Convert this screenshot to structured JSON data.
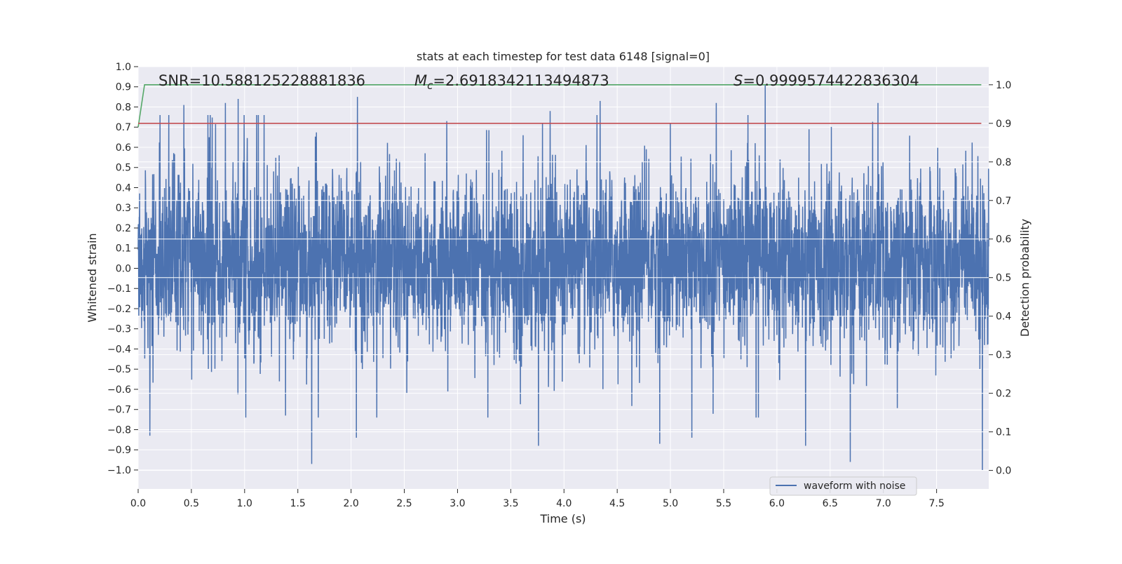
{
  "chart_data": {
    "type": "line",
    "title": "stats at each timestep for test data 6148 [signal=0]",
    "xlabel": "Time (s)",
    "ylabel": "Whitened strain",
    "y2label": "Detection probability",
    "xlim": [
      0,
      7.99
    ],
    "ylim": [
      -1.094,
      1.0
    ],
    "y2lim": [
      -0.048,
      1.047
    ],
    "xticks": [
      0.0,
      0.5,
      1.0,
      1.5,
      2.0,
      2.5,
      3.0,
      3.5,
      4.0,
      4.5,
      5.0,
      5.5,
      6.0,
      6.5,
      7.0,
      7.5
    ],
    "xtick_labels": [
      "0.0",
      "0.5",
      "1.0",
      "1.5",
      "2.0",
      "2.5",
      "3.0",
      "3.5",
      "4.0",
      "4.5",
      "5.0",
      "5.5",
      "6.0",
      "6.5",
      "7.0",
      "7.5"
    ],
    "yticks": [
      1.0,
      0.9,
      0.8,
      0.7,
      0.6,
      0.5,
      0.4,
      0.3,
      0.2,
      0.1,
      0.0,
      -0.1,
      -0.2,
      -0.3,
      -0.4,
      -0.5,
      -0.6,
      -0.7,
      -0.8,
      -0.9,
      -1.0
    ],
    "ytick_labels": [
      "1.0",
      "0.9",
      "0.8",
      "0.7",
      "0.6",
      "0.5",
      "0.4",
      "0.3",
      "0.2",
      "0.1",
      "0.0",
      "−0.1",
      "−0.2",
      "−0.3",
      "−0.4",
      "−0.5",
      "−0.6",
      "−0.7",
      "−0.8",
      "−0.9",
      "−1.0"
    ],
    "y2ticks": [
      1.0,
      0.9,
      0.8,
      0.7,
      0.6,
      0.5,
      0.4,
      0.3,
      0.2,
      0.1,
      0.0
    ],
    "y2tick_labels": [
      "1.0",
      "0.9",
      "0.8",
      "0.7",
      "0.6",
      "0.5",
      "0.4",
      "0.3",
      "0.2",
      "0.1",
      "0.0"
    ],
    "annotations": {
      "snr": "SNR=10.588125228881836",
      "mc_symbol": "M",
      "mc_sub": "c",
      "mc_value": "=2.6918342113494873",
      "s_symbol": "S",
      "s_value": "=0.9999574422836304"
    },
    "legend": {
      "placement": "lower-right",
      "entries": [
        "waveform with noise"
      ]
    },
    "grid": true,
    "series": [
      {
        "name": "waveform with noise",
        "axis": "left",
        "color": "#4c72b0",
        "kind": "noise",
        "n_samples": 4000,
        "std": 0.2,
        "peaks": [
          {
            "x": 0.43,
            "y": 0.81
          },
          {
            "x": 0.82,
            "y": 0.82
          },
          {
            "x": 0.94,
            "y": 0.84
          },
          {
            "x": 2.06,
            "y": 0.85
          },
          {
            "x": 2.9,
            "y": 0.73
          },
          {
            "x": 3.87,
            "y": 0.78
          },
          {
            "x": 4.34,
            "y": 0.83
          },
          {
            "x": 5.43,
            "y": 0.82
          },
          {
            "x": 5.89,
            "y": 0.91
          },
          {
            "x": 6.95,
            "y": 0.82
          },
          {
            "x": 7.93,
            "y": 0.76
          },
          {
            "x": 1.63,
            "y": -0.97
          },
          {
            "x": 6.69,
            "y": -0.96
          },
          {
            "x": 7.93,
            "y": -1.0
          },
          {
            "x": 3.76,
            "y": -0.88
          },
          {
            "x": 6.27,
            "y": -0.88
          },
          {
            "x": 4.9,
            "y": -0.87
          },
          {
            "x": 0.11,
            "y": -0.83
          },
          {
            "x": 2.05,
            "y": -0.84
          },
          {
            "x": 5.2,
            "y": -0.84
          }
        ]
      },
      {
        "name": "detection probability",
        "axis": "right",
        "color": "#55a868",
        "x": [
          0.0,
          0.06,
          7.92
        ],
        "y": [
          0.89,
          1.0,
          1.0
        ]
      },
      {
        "name": "threshold",
        "axis": "right",
        "color": "#c44e52",
        "x": [
          0.0,
          7.92
        ],
        "y": [
          0.9,
          0.9
        ]
      }
    ]
  }
}
